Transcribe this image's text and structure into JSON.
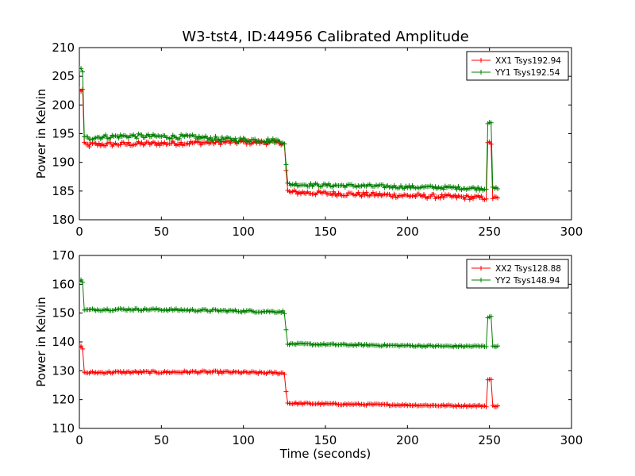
{
  "figure": {
    "title": "W3-tst4, ID:44956 Calibrated Amplitude",
    "xlabel": "Time (seconds)"
  },
  "chart_data": [
    {
      "type": "line",
      "ylabel": "Power in Kelvin",
      "xlim": [
        0,
        300
      ],
      "ylim": [
        180,
        210
      ],
      "xticks": [
        0,
        50,
        100,
        150,
        200,
        250,
        300
      ],
      "yticks": [
        180,
        185,
        190,
        195,
        200,
        205,
        210
      ],
      "legend_position": "top-right",
      "grid": false,
      "series": [
        {
          "name": "XX1 Tsys192.94",
          "color": "#ff0000",
          "marker": "+",
          "segments": [
            [
              0,
              202.6,
              0.5
            ],
            [
              1,
              202.6,
              0.5
            ],
            [
              2,
              202.6,
              0.5
            ],
            [
              3,
              193.0,
              0.5
            ],
            [
              4,
              193.0,
              0.5
            ],
            [
              10,
              193.1,
              0.4
            ],
            [
              30,
              193.2,
              0.4
            ],
            [
              50,
              193.3,
              0.4
            ],
            [
              70,
              193.4,
              0.4
            ],
            [
              90,
              193.5,
              0.4
            ],
            [
              110,
              193.5,
              0.4
            ],
            [
              124,
              193.4,
              0.4
            ],
            [
              125,
              193.2,
              0.3
            ],
            [
              126,
              188.5,
              0.3
            ],
            [
              127,
              185.0,
              0.3
            ],
            [
              128,
              184.8,
              0.4
            ],
            [
              150,
              184.6,
              0.4
            ],
            [
              175,
              184.4,
              0.4
            ],
            [
              200,
              184.2,
              0.4
            ],
            [
              225,
              184.0,
              0.4
            ],
            [
              248,
              183.8,
              0.3
            ],
            [
              249,
              193.2,
              0.3
            ],
            [
              250,
              193.4,
              0.3
            ],
            [
              251,
              193.3,
              0.3
            ],
            [
              252,
              183.8,
              0.3
            ],
            [
              255,
              183.8,
              0.3
            ]
          ]
        },
        {
          "name": "YY1 Tsys192.54",
          "color": "#008000",
          "marker": "+",
          "segments": [
            [
              0,
              206.2,
              0.4
            ],
            [
              1,
              206.2,
              0.4
            ],
            [
              2,
              206.0,
              0.4
            ],
            [
              3,
              194.2,
              0.4
            ],
            [
              4,
              194.2,
              0.4
            ],
            [
              10,
              194.4,
              0.4
            ],
            [
              30,
              194.6,
              0.4
            ],
            [
              50,
              194.5,
              0.4
            ],
            [
              70,
              194.4,
              0.4
            ],
            [
              90,
              194.0,
              0.4
            ],
            [
              110,
              193.9,
              0.4
            ],
            [
              124,
              193.7,
              0.4
            ],
            [
              125,
              193.4,
              0.3
            ],
            [
              126,
              189.5,
              0.3
            ],
            [
              127,
              186.2,
              0.3
            ],
            [
              128,
              186.2,
              0.3
            ],
            [
              150,
              186.0,
              0.3
            ],
            [
              175,
              185.9,
              0.3
            ],
            [
              200,
              185.7,
              0.3
            ],
            [
              225,
              185.6,
              0.3
            ],
            [
              248,
              185.4,
              0.3
            ],
            [
              249,
              197.0,
              0.3
            ],
            [
              250,
              197.2,
              0.3
            ],
            [
              251,
              197.0,
              0.3
            ],
            [
              252,
              185.4,
              0.3
            ],
            [
              255,
              185.4,
              0.3
            ]
          ]
        }
      ]
    },
    {
      "type": "line",
      "ylabel": "Power in Kelvin",
      "xlabel": "Time (seconds)",
      "xlim": [
        0,
        300
      ],
      "ylim": [
        110,
        170
      ],
      "xticks": [
        0,
        50,
        100,
        150,
        200,
        250,
        300
      ],
      "yticks": [
        110,
        120,
        130,
        140,
        150,
        160,
        170
      ],
      "legend_position": "top-right",
      "grid": false,
      "series": [
        {
          "name": "XX2 Tsys128.88",
          "color": "#ff0000",
          "marker": "+",
          "segments": [
            [
              0,
              138.2,
              0.5
            ],
            [
              1,
              138.2,
              0.5
            ],
            [
              2,
              138.0,
              0.5
            ],
            [
              3,
              129.3,
              0.4
            ],
            [
              4,
              129.3,
              0.4
            ],
            [
              10,
              129.4,
              0.4
            ],
            [
              30,
              129.5,
              0.4
            ],
            [
              50,
              129.5,
              0.4
            ],
            [
              70,
              129.6,
              0.4
            ],
            [
              90,
              129.5,
              0.4
            ],
            [
              110,
              129.3,
              0.4
            ],
            [
              124,
              129.2,
              0.4
            ],
            [
              125,
              128.8,
              0.3
            ],
            [
              126,
              123.0,
              0.3
            ],
            [
              127,
              118.8,
              0.3
            ],
            [
              128,
              118.7,
              0.3
            ],
            [
              150,
              118.5,
              0.3
            ],
            [
              175,
              118.3,
              0.3
            ],
            [
              200,
              118.1,
              0.3
            ],
            [
              225,
              117.9,
              0.3
            ],
            [
              248,
              117.8,
              0.3
            ],
            [
              249,
              126.8,
              0.3
            ],
            [
              250,
              127.0,
              0.3
            ],
            [
              251,
              126.8,
              0.3
            ],
            [
              252,
              117.8,
              0.3
            ],
            [
              255,
              117.8,
              0.3
            ]
          ]
        },
        {
          "name": "YY2 Tsys148.94",
          "color": "#008000",
          "marker": "+",
          "segments": [
            [
              0,
              161.2,
              0.5
            ],
            [
              1,
              161.2,
              0.5
            ],
            [
              2,
              161.0,
              0.5
            ],
            [
              3,
              151.0,
              0.4
            ],
            [
              4,
              151.0,
              0.4
            ],
            [
              10,
              151.2,
              0.4
            ],
            [
              30,
              151.3,
              0.4
            ],
            [
              50,
              151.2,
              0.4
            ],
            [
              70,
              151.0,
              0.4
            ],
            [
              90,
              150.8,
              0.4
            ],
            [
              110,
              150.6,
              0.4
            ],
            [
              124,
              150.5,
              0.4
            ],
            [
              125,
              150.0,
              0.3
            ],
            [
              126,
              144.0,
              0.3
            ],
            [
              127,
              139.5,
              0.3
            ],
            [
              128,
              139.3,
              0.3
            ],
            [
              150,
              139.1,
              0.3
            ],
            [
              175,
              138.9,
              0.3
            ],
            [
              200,
              138.7,
              0.3
            ],
            [
              225,
              138.5,
              0.3
            ],
            [
              248,
              138.5,
              0.3
            ],
            [
              249,
              148.6,
              0.3
            ],
            [
              250,
              148.8,
              0.3
            ],
            [
              251,
              148.6,
              0.3
            ],
            [
              252,
              138.6,
              0.3
            ],
            [
              255,
              138.6,
              0.3
            ]
          ]
        }
      ]
    }
  ]
}
